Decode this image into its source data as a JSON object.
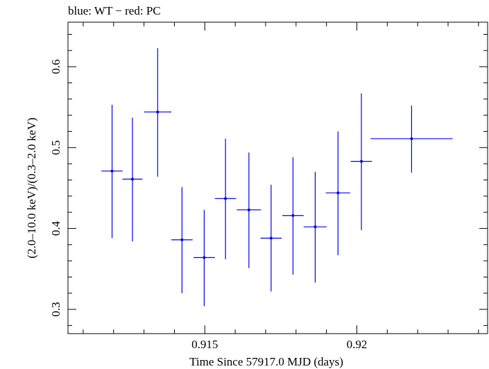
{
  "chart_data": {
    "type": "scatter",
    "title": "blue: WT − red: PC",
    "xlabel": "Time Since 57917.0 MJD (days)",
    "ylabel": "(2.0–10.0 keV)/(0.3–2.0 keV)",
    "xlim": [
      0.9105,
      0.9243
    ],
    "ylim": [
      0.27,
      0.655
    ],
    "x_major_ticks": [
      0.915,
      0.92
    ],
    "x_tick_labels": [
      "0.915",
      "0.92"
    ],
    "x_minor_step": 0.001,
    "y_major_ticks": [
      0.3,
      0.4,
      0.5,
      0.6
    ],
    "y_tick_labels": [
      "0.3",
      "0.4",
      "0.5",
      "0.6"
    ],
    "y_minor_step": 0.02,
    "grid": false,
    "series": [
      {
        "name": "WT",
        "color": "#0000ee",
        "points": [
          {
            "x": 0.91195,
            "xerr": 0.00035,
            "y": 0.471,
            "yerr_lo": 0.083,
            "yerr_hi": 0.082
          },
          {
            "x": 0.91262,
            "xerr": 0.00033,
            "y": 0.461,
            "yerr_lo": 0.077,
            "yerr_hi": 0.076
          },
          {
            "x": 0.91345,
            "xerr": 0.00045,
            "y": 0.544,
            "yerr_lo": 0.08,
            "yerr_hi": 0.079
          },
          {
            "x": 0.91425,
            "xerr": 0.00035,
            "y": 0.386,
            "yerr_lo": 0.066,
            "yerr_hi": 0.065
          },
          {
            "x": 0.91498,
            "xerr": 0.00035,
            "y": 0.364,
            "yerr_lo": 0.06,
            "yerr_hi": 0.059
          },
          {
            "x": 0.91568,
            "xerr": 0.00035,
            "y": 0.437,
            "yerr_lo": 0.075,
            "yerr_hi": 0.074
          },
          {
            "x": 0.91645,
            "xerr": 0.0004,
            "y": 0.423,
            "yerr_lo": 0.072,
            "yerr_hi": 0.071
          },
          {
            "x": 0.91718,
            "xerr": 0.00035,
            "y": 0.388,
            "yerr_lo": 0.066,
            "yerr_hi": 0.066
          },
          {
            "x": 0.9179,
            "xerr": 0.00035,
            "y": 0.416,
            "yerr_lo": 0.073,
            "yerr_hi": 0.072
          },
          {
            "x": 0.91863,
            "xerr": 0.00038,
            "y": 0.402,
            "yerr_lo": 0.069,
            "yerr_hi": 0.068
          },
          {
            "x": 0.91938,
            "xerr": 0.0004,
            "y": 0.444,
            "yerr_lo": 0.077,
            "yerr_hi": 0.076
          },
          {
            "x": 0.92015,
            "xerr": 0.00035,
            "y": 0.483,
            "yerr_lo": 0.085,
            "yerr_hi": 0.084
          },
          {
            "x": 0.9218,
            "xerr": 0.00135,
            "y": 0.511,
            "yerr_lo": 0.042,
            "yerr_hi": 0.041
          }
        ]
      }
    ]
  }
}
